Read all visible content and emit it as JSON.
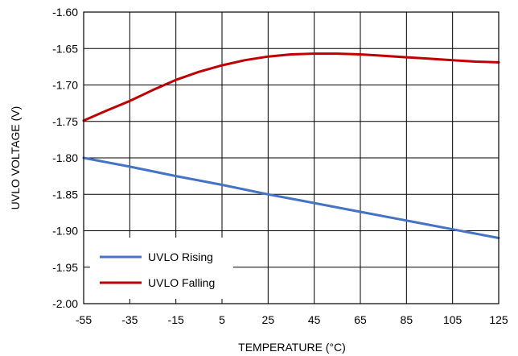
{
  "chart_data": {
    "type": "line",
    "title": "",
    "xlabel": "TEMPERATURE (°C)",
    "ylabel": "UVLO VOLTAGE (V)",
    "xlim": [
      -55,
      125
    ],
    "ylim": [
      -2.0,
      -1.6
    ],
    "grid": true,
    "legend_position": "bottom-left",
    "x_ticks": [
      -55,
      -35,
      -15,
      5,
      25,
      45,
      65,
      85,
      105,
      125
    ],
    "x_tick_labels": [
      "-55",
      "-35",
      "-15",
      "5",
      "25",
      "45",
      "65",
      "85",
      "105",
      "125"
    ],
    "y_ticks": [
      -1.6,
      -1.65,
      -1.7,
      -1.75,
      -1.8,
      -1.85,
      -1.9,
      -1.95,
      -2.0
    ],
    "y_tick_labels": [
      "-1.60",
      "-1.65",
      "-1.70",
      "-1.75",
      "-1.80",
      "-1.85",
      "-1.90",
      "-1.95",
      "-2.00"
    ],
    "series": [
      {
        "name": "UVLO Rising",
        "color": "#4472C4",
        "x": [
          -55,
          -35,
          -15,
          5,
          25,
          45,
          65,
          85,
          105,
          125
        ],
        "y": [
          -1.8,
          -1.812,
          -1.825,
          -1.837,
          -1.85,
          -1.862,
          -1.874,
          -1.886,
          -1.898,
          -1.91
        ]
      },
      {
        "name": "UVLO Falling",
        "color": "#C00000",
        "x": [
          -55,
          -45,
          -35,
          -25,
          -15,
          -5,
          5,
          15,
          25,
          35,
          45,
          55,
          65,
          75,
          85,
          95,
          105,
          115,
          125
        ],
        "y": [
          -1.749,
          -1.735,
          -1.722,
          -1.707,
          -1.693,
          -1.682,
          -1.673,
          -1.666,
          -1.661,
          -1.658,
          -1.657,
          -1.657,
          -1.658,
          -1.66,
          -1.662,
          -1.664,
          -1.666,
          -1.668,
          -1.669
        ]
      }
    ]
  }
}
